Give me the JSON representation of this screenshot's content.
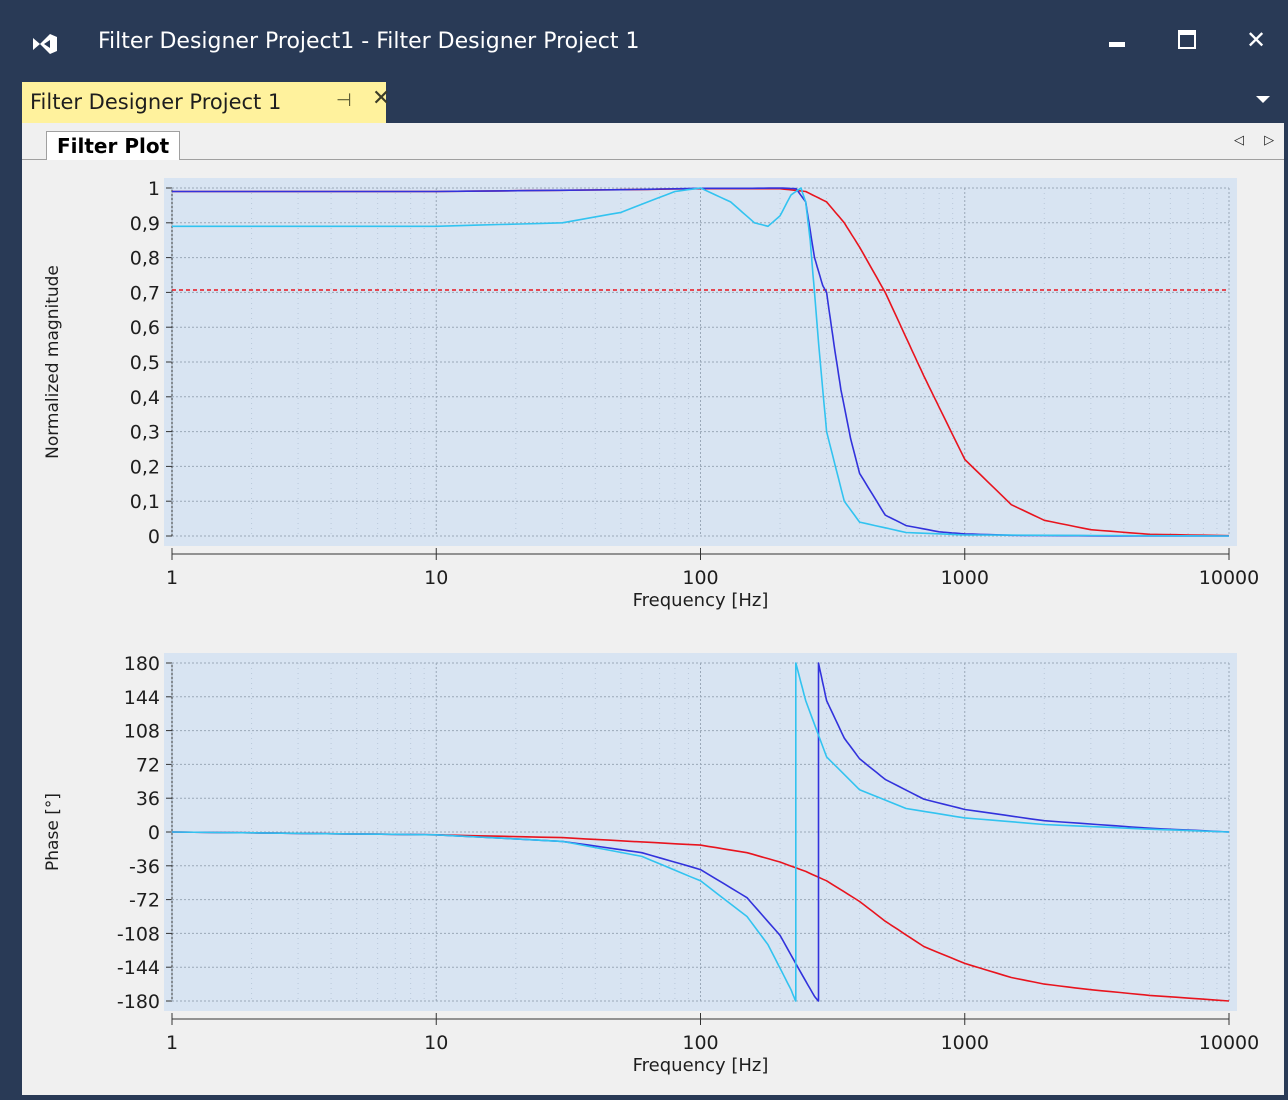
{
  "window": {
    "title": "Filter Designer Project1 - Filter Designer Project 1",
    "minimize_icon": "minimize-icon",
    "maximize_icon": "maximize-icon",
    "close_glyph": "✕"
  },
  "document_tab": {
    "label": "Filter Designer Project 1",
    "pin_glyph": "⊣",
    "close_glyph": "✕"
  },
  "inner_tab": {
    "label": "Filter Plot",
    "scroll_arrows": "◁ ▷"
  },
  "colors": {
    "chrome": "#293a56",
    "tab_active": "#fff29d",
    "plot_bg": "#d8e4f2",
    "series_red": "#e8141e",
    "series_blue": "#3232dc",
    "series_cyan": "#32c3f0",
    "reference_line": "#e8141e"
  },
  "chart_data": [
    {
      "type": "line",
      "x_scale": "log",
      "xlim": [
        1,
        10000
      ],
      "ylim": [
        0,
        1
      ],
      "xlabel": "Frequency [Hz]",
      "ylabel": "Normalized magnitude",
      "x_ticks": [
        "1",
        "10",
        "100",
        "1000",
        "10000"
      ],
      "y_ticks": [
        "0",
        "0,1",
        "0,2",
        "0,3",
        "0,4",
        "0,5",
        "0,6",
        "0,7",
        "0,8",
        "0,9",
        "1"
      ],
      "grid": true,
      "reference_line": {
        "y": 0.707,
        "style": "dashed"
      },
      "series": [
        {
          "color": "#e8141e",
          "x": [
            1,
            10,
            50,
            100,
            200,
            250,
            300,
            350,
            400,
            500,
            600,
            700,
            800,
            1000,
            1500,
            2000,
            3000,
            5000,
            10000
          ],
          "y": [
            0.99,
            0.99,
            0.995,
            0.998,
            0.998,
            0.99,
            0.96,
            0.9,
            0.83,
            0.7,
            0.57,
            0.46,
            0.37,
            0.22,
            0.09,
            0.045,
            0.018,
            0.005,
            0.001
          ]
        },
        {
          "color": "#3232dc",
          "x": [
            1,
            10,
            50,
            100,
            150,
            200,
            230,
            250,
            270,
            290,
            300,
            320,
            340,
            370,
            400,
            500,
            600,
            800,
            1000,
            1500,
            3000,
            10000
          ],
          "y": [
            0.99,
            0.99,
            0.995,
            0.999,
            0.999,
            1.0,
            0.998,
            0.96,
            0.8,
            0.72,
            0.7,
            0.55,
            0.42,
            0.28,
            0.18,
            0.06,
            0.03,
            0.012,
            0.006,
            0.002,
            0.0005,
            0.0
          ]
        },
        {
          "color": "#32c3f0",
          "x": [
            1,
            10,
            30,
            50,
            80,
            100,
            130,
            160,
            180,
            200,
            220,
            240,
            250,
            260,
            270,
            280,
            300,
            350,
            400,
            600,
            1000,
            10000
          ],
          "y": [
            0.89,
            0.89,
            0.9,
            0.93,
            0.99,
            1.0,
            0.96,
            0.9,
            0.89,
            0.92,
            0.98,
            1.0,
            0.96,
            0.85,
            0.7,
            0.55,
            0.3,
            0.1,
            0.04,
            0.01,
            0.003,
            0.0
          ]
        }
      ]
    },
    {
      "type": "line",
      "x_scale": "log",
      "xlim": [
        1,
        10000
      ],
      "ylim": [
        -180,
        180
      ],
      "xlabel": "Frequency [Hz]",
      "ylabel": "Phase [°]",
      "x_ticks": [
        "1",
        "10",
        "100",
        "1000",
        "10000"
      ],
      "y_ticks": [
        "180",
        "144",
        "108",
        "72",
        "36",
        "0",
        "-36",
        "-72",
        "-108",
        "-144",
        "-180"
      ],
      "grid": true,
      "series": [
        {
          "color": "#e8141e",
          "x": [
            1,
            10,
            30,
            100,
            150,
            200,
            250,
            300,
            400,
            500,
            700,
            1000,
            1500,
            2000,
            3000,
            5000,
            10000
          ],
          "y": [
            0,
            -3,
            -6,
            -14,
            -22,
            -32,
            -42,
            -52,
            -74,
            -95,
            -122,
            -140,
            -155,
            -162,
            -168,
            -174,
            -180
          ]
        },
        {
          "color": "#3232dc",
          "x": [
            1,
            10,
            30,
            60,
            100,
            150,
            200,
            240,
            270,
            279,
            279.5,
            300,
            350,
            400,
            500,
            700,
            1000,
            2000,
            5000,
            10000
          ],
          "y": [
            0,
            -3,
            -10,
            -22,
            -40,
            -70,
            -110,
            -150,
            -175,
            -180,
            180,
            140,
            100,
            78,
            56,
            35,
            24,
            12,
            4,
            0
          ]
        },
        {
          "color": "#32c3f0",
          "x": [
            1,
            10,
            30,
            60,
            100,
            150,
            180,
            200,
            220,
            229,
            229.5,
            250,
            300,
            400,
            600,
            1000,
            2000,
            5000,
            10000
          ],
          "y": [
            0,
            -3,
            -10,
            -26,
            -52,
            -90,
            -120,
            -145,
            -168,
            -180,
            180,
            140,
            80,
            45,
            25,
            15,
            8,
            3,
            0
          ]
        }
      ]
    }
  ]
}
